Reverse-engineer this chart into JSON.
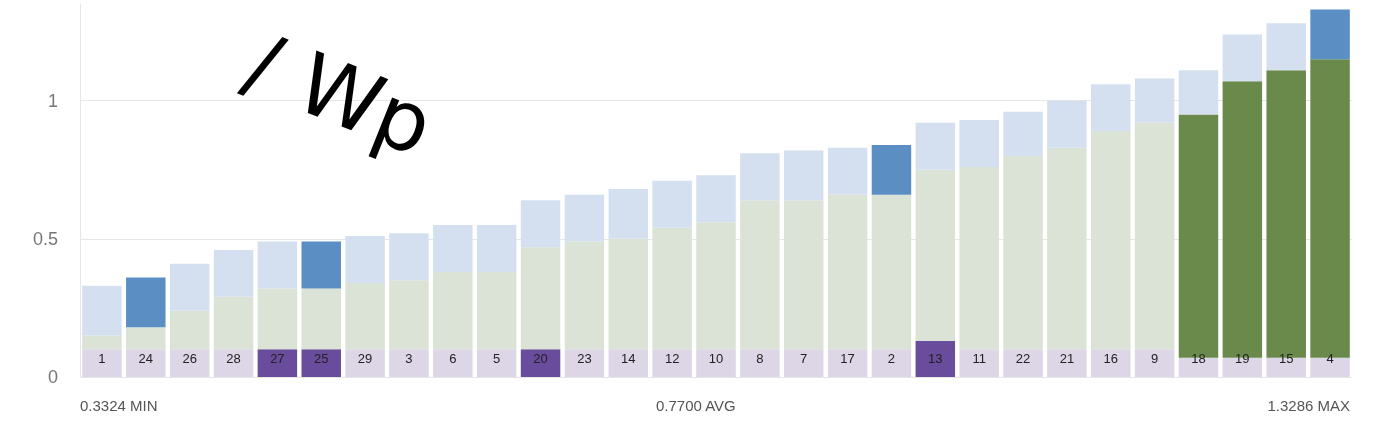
{
  "chart_data": {
    "type": "bar",
    "stacked": true,
    "categories": [
      "1",
      "24",
      "26",
      "28",
      "27",
      "25",
      "29",
      "3",
      "6",
      "5",
      "20",
      "23",
      "14",
      "12",
      "10",
      "8",
      "7",
      "17",
      "2",
      "13",
      "11",
      "22",
      "21",
      "16",
      "9",
      "18",
      "19",
      "15",
      "4"
    ],
    "series": [
      {
        "colors": [
          "#dcd6e6",
          "#dcd6e6",
          "#dcd6e6",
          "#dcd6e6",
          "#6a4c9c",
          "#6a4c9c",
          "#dcd6e6",
          "#dcd6e6",
          "#dcd6e6",
          "#dcd6e6",
          "#6a4c9c",
          "#dcd6e6",
          "#dcd6e6",
          "#dcd6e6",
          "#dcd6e6",
          "#dcd6e6",
          "#dcd6e6",
          "#dcd6e6",
          "#dcd6e6",
          "#6a4c9c",
          "#dcd6e6",
          "#dcd6e6",
          "#dcd6e6",
          "#dcd6e6",
          "#dcd6e6",
          "#dcd6e6",
          "#dcd6e6",
          "#dcd6e6",
          "#dcd6e6"
        ],
        "values": [
          0.1,
          0.1,
          0.1,
          0.1,
          0.1,
          0.1,
          0.1,
          0.1,
          0.1,
          0.1,
          0.1,
          0.1,
          0.1,
          0.1,
          0.1,
          0.1,
          0.1,
          0.1,
          0.1,
          0.13,
          0.1,
          0.1,
          0.1,
          0.1,
          0.1,
          0.07,
          0.07,
          0.07,
          0.07
        ]
      },
      {
        "colors": [
          "#dbe2d6",
          "#dbe2d6",
          "#dbe2d6",
          "#dbe2d6",
          "#dbe2d6",
          "#dbe2d6",
          "#dbe2d6",
          "#dbe2d6",
          "#dbe2d6",
          "#dbe2d6",
          "#dbe2d6",
          "#dbe2d6",
          "#dbe2d6",
          "#dbe2d6",
          "#dbe2d6",
          "#dbe2d6",
          "#dbe2d6",
          "#dbe2d6",
          "#dbe2d6",
          "#dbe2d6",
          "#dbe2d6",
          "#dbe2d6",
          "#dbe2d6",
          "#dbe2d6",
          "#dbe2d6",
          "#6a8a4c",
          "#6a8a4c",
          "#6a8a4c",
          "#6a8a4c"
        ],
        "values": [
          0.05,
          0.08,
          0.14,
          0.19,
          0.22,
          0.22,
          0.24,
          0.25,
          0.28,
          0.28,
          0.37,
          0.39,
          0.4,
          0.44,
          0.46,
          0.54,
          0.54,
          0.56,
          0.56,
          0.62,
          0.66,
          0.7,
          0.73,
          0.79,
          0.82,
          0.88,
          1.0,
          1.04,
          1.08
        ]
      },
      {
        "colors": [
          "#d4e0ef",
          "#5b8fc4",
          "#d4e0ef",
          "#d4e0ef",
          "#d4e0ef",
          "#5b8fc4",
          "#d4e0ef",
          "#d4e0ef",
          "#d4e0ef",
          "#d4e0ef",
          "#d4e0ef",
          "#d4e0ef",
          "#d4e0ef",
          "#d4e0ef",
          "#d4e0ef",
          "#d4e0ef",
          "#d4e0ef",
          "#d4e0ef",
          "#5b8fc4",
          "#d4e0ef",
          "#d4e0ef",
          "#d4e0ef",
          "#d4e0ef",
          "#d4e0ef",
          "#d4e0ef",
          "#d4e0ef",
          "#d4e0ef",
          "#d4e0ef",
          "#5b8fc4"
        ],
        "values": [
          0.18,
          0.18,
          0.17,
          0.17,
          0.17,
          0.17,
          0.17,
          0.17,
          0.17,
          0.17,
          0.17,
          0.17,
          0.18,
          0.17,
          0.17,
          0.17,
          0.18,
          0.17,
          0.18,
          0.17,
          0.17,
          0.16,
          0.17,
          0.17,
          0.16,
          0.16,
          0.17,
          0.17,
          0.18
        ]
      }
    ],
    "ylim": [
      0,
      1.35
    ],
    "yticks": [
      0,
      0.5,
      1
    ],
    "grid": "y",
    "annotations": [
      "/ Wp",
      "0.3324 MIN",
      "0.7700 AVG",
      "1.3286 MAX"
    ]
  }
}
